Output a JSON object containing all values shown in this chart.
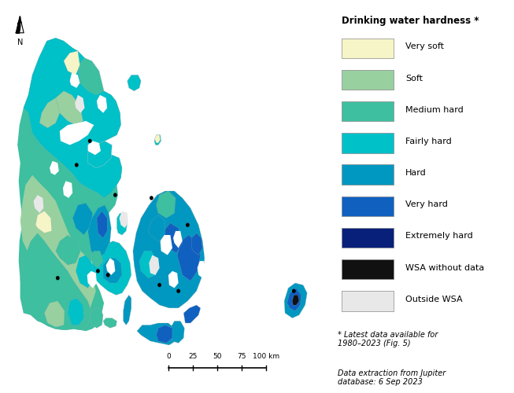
{
  "title": "Drinking water hardness *",
  "legend_entries": [
    {
      "label": "Very soft",
      "color": "#f5f5c8"
    },
    {
      "label": "Soft",
      "color": "#99d0a0"
    },
    {
      "label": "Medium hard",
      "color": "#3dbfa0"
    },
    {
      "label": "Fairly hard",
      "color": "#00c0c8"
    },
    {
      "label": "Hard",
      "color": "#0098c0"
    },
    {
      "label": "Very hard",
      "color": "#1060c0"
    },
    {
      "label": "Extremely hard",
      "color": "#08207a"
    },
    {
      "label": "WSA without data",
      "color": "#111111"
    },
    {
      "label": "Outside WSA",
      "color": "#e8e8e8"
    }
  ],
  "note1": "* Latest data available for\n1980–2023 (Fig. 5)",
  "note2": "Data extraction from Jupiter\ndatabase: 6 Sep 2023",
  "background_color": "#ffffff",
  "sea_color": "#ffffff",
  "border_color": "#ffffff",
  "scalebar_ticks": [
    0,
    25,
    50,
    75,
    100
  ],
  "scalebar_unit": "km"
}
